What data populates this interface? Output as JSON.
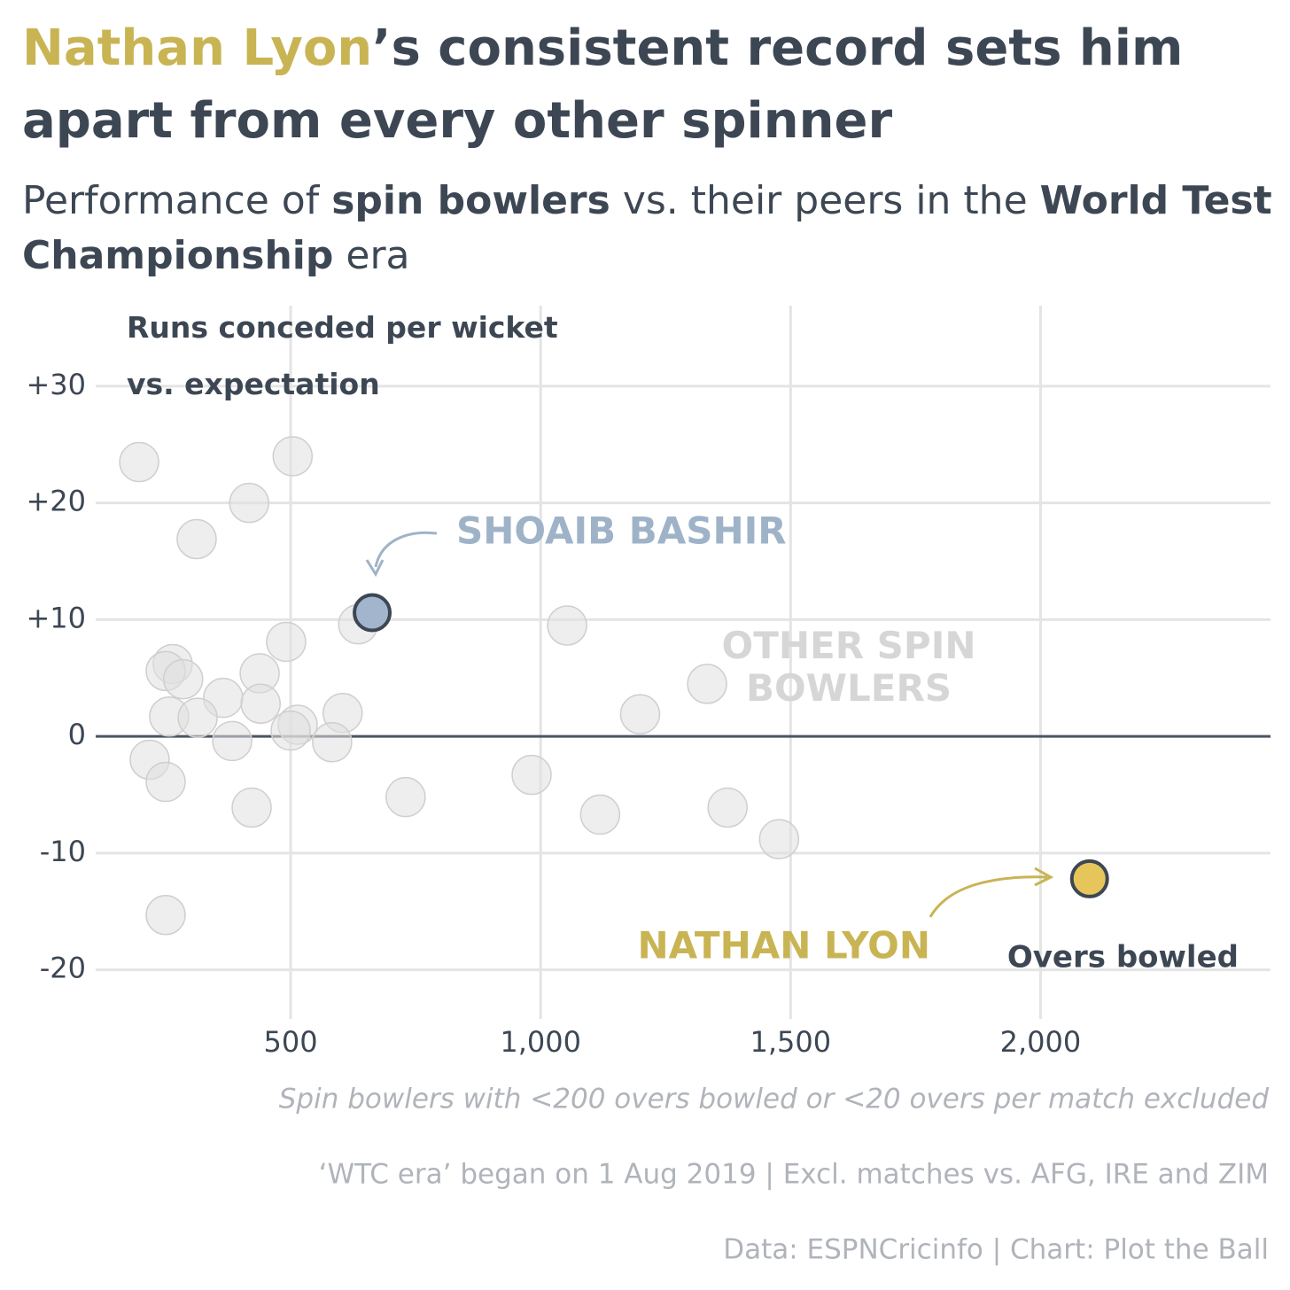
{
  "chart_data": {
    "type": "scatter",
    "title_highlight": "Nathan Lyon",
    "title_rest": "’s consistent record sets him apart from every other spinner",
    "title_highlight_color": "#c9b454",
    "subtitle": [
      {
        "text": "Performance of ",
        "bold": false
      },
      {
        "text": "spin bowlers",
        "bold": true
      },
      {
        "text": " vs. their peers in the ",
        "bold": false
      },
      {
        "text": "World Test Championship",
        "bold": true
      },
      {
        "text": " era",
        "bold": false
      }
    ],
    "y_label": "Runs conceded per wicket vs. expectation",
    "x_label": "Overs bowled",
    "xlim": [
      110,
      2460
    ],
    "ylim": [
      -24.2,
      36.9
    ],
    "xticks": [
      500,
      {
        "value": 1000,
        "label": "1,000"
      },
      {
        "value": 1500,
        "label": "1,500"
      },
      {
        "value": 2000,
        "label": "2,000"
      }
    ],
    "yticks": [
      {
        "value": 30,
        "label": "+30"
      },
      {
        "value": 20,
        "label": "+20"
      },
      {
        "value": 10,
        "label": "+10"
      },
      0,
      -10,
      -20
    ],
    "grid": true,
    "series": [
      {
        "name": "OTHER SPIN BOWLERS",
        "color": "#e0e0e0",
        "label_color": "#d6d6d6",
        "x": [
          197,
          504,
          417,
          312,
          635,
          1053,
          491,
          264,
          250,
          285,
          438,
          365,
          440,
          257,
          314,
          514,
          500,
          604,
          383,
          583,
          218,
          250,
          422,
          730,
          982,
          1119,
          1199,
          1333,
          1374,
          1477,
          250
        ],
        "y": [
          23.5,
          24.0,
          20.0,
          16.9,
          9.6,
          9.5,
          8.1,
          6.2,
          5.6,
          4.9,
          5.4,
          3.3,
          2.8,
          1.7,
          1.6,
          1.0,
          0.5,
          2.0,
          -0.4,
          -0.5,
          -2.0,
          -3.9,
          -6.1,
          -5.2,
          -3.3,
          -6.7,
          1.9,
          4.5,
          -6.1,
          -8.8,
          -15.3
        ]
      },
      {
        "name": "SHOAIB BASHIR",
        "color": "#a3b5cc",
        "label_color": "#9fb3c8",
        "x": [
          663
        ],
        "y": [
          10.6
        ]
      },
      {
        "name": "NATHAN LYON",
        "color": "#e6c65a",
        "label_color": "#c9b454",
        "x": [
          2098
        ],
        "y": [
          -12.2
        ]
      }
    ],
    "notes": [
      "Spin bowlers with <200 overs bowled or <20 overs per match excluded",
      "‘WTC era’ began on 1 Aug 2019 | Excl. matches vs. AFG, IRE and ZIM",
      "Data: ESPNCricinfo | Chart: Plot the Ball"
    ]
  }
}
